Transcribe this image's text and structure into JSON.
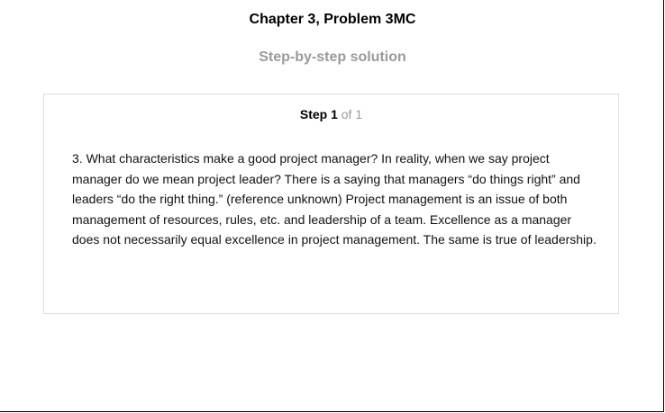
{
  "header": {
    "title": "Chapter 3, Problem 3MC",
    "subtitle": "Step-by-step solution"
  },
  "step": {
    "label": "Step 1",
    "of": "of 1",
    "text": "3. What characteristics make a good project manager? In reality, when we say project manager do we mean project leader? There is a saying that managers “do things right” and leaders “do the right thing.” (reference unknown) Project management is an issue of both management of resources, rules, etc. and leadership of a team. Excellence as a manager does not necessarily equal excellence in project management. The same is true of leadership."
  }
}
